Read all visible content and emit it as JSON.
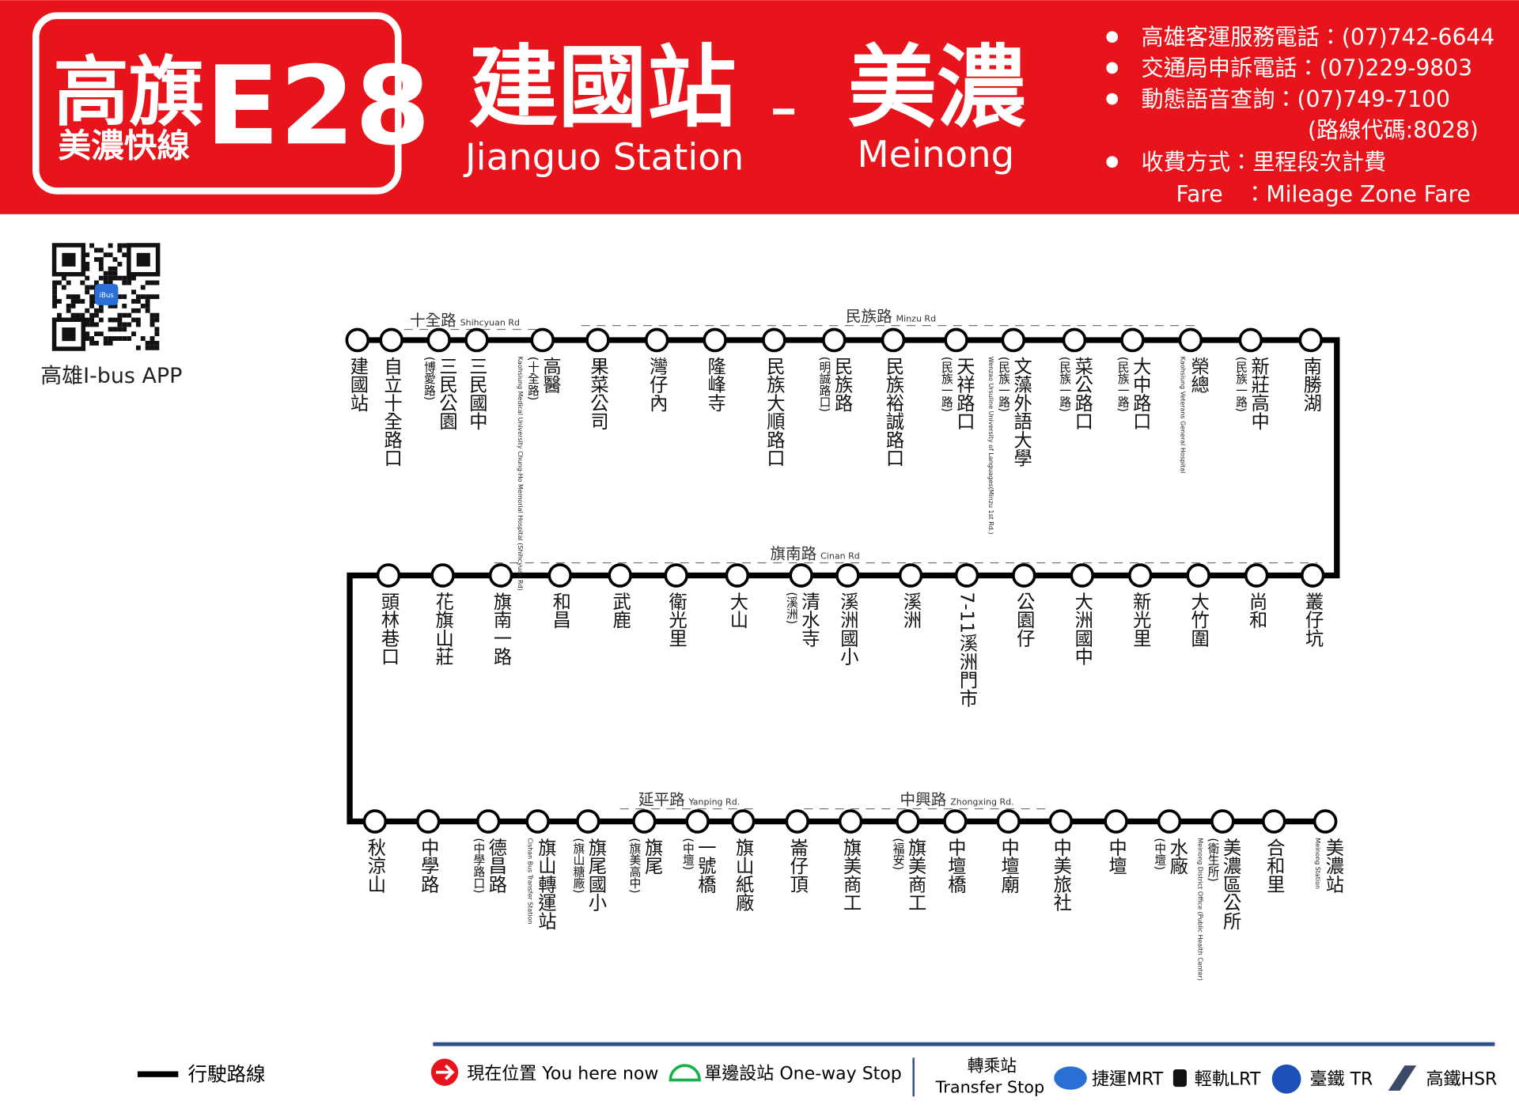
{
  "header": {
    "route_name": "高旗",
    "route_number": "E28",
    "route_subtitle": "美濃快線",
    "origin": "建國站",
    "origin_en": "Jianguo Station",
    "destination": "美濃",
    "destination_en": "Meinong"
  },
  "info": {
    "service_phone": "高雄客運服務電話：(07)742-6644",
    "complaint_phone": "交通局申訴電話：(07)229-9803",
    "voice_query": "動態語音查詢：(07)749-7100",
    "route_code": "(路線代碼:8028)",
    "fare": "收費方式：里程段次計費",
    "fare_en_label": "Fare",
    "fare_en": "：Mileage Zone Fare"
  },
  "app": {
    "label": "高雄I-bus APP",
    "badge": "iBus"
  },
  "roads": [
    {
      "name": "十全路",
      "en": "Shihcyuan Rd"
    },
    {
      "name": "民族路",
      "en": "Minzu Rd"
    },
    {
      "name": "旗南路",
      "en": "Cinan Rd"
    },
    {
      "name": "延平路",
      "en": "Yanping Rd."
    },
    {
      "name": "中興路",
      "en": "Zhongxing Rd."
    }
  ],
  "rows": [
    {
      "stops": [
        {
          "name": "建國站"
        },
        {
          "name": "自立十全路口"
        },
        {
          "name": "三民公園",
          "note": "(博愛路)"
        },
        {
          "name": "三民國中"
        },
        {
          "name": "高醫",
          "note": "(十全路)",
          "en": "Kaohsiung Medical University Chung-Ho Memorial Hospital (Shihcyuan Rd)"
        },
        {
          "name": "果菜公司"
        },
        {
          "name": "灣仔內"
        },
        {
          "name": "隆峰寺"
        },
        {
          "name": "民族大順路口"
        },
        {
          "name": "民族路",
          "note": "(明誠路口)"
        },
        {
          "name": "民族裕誠路口"
        },
        {
          "name": "天祥路口",
          "note": "(民族一路)"
        },
        {
          "name": "文藻外語大學",
          "note": "(民族一路)",
          "en": "Wenzao Ursuline University of Languages(Minzu 1st Rd.)"
        },
        {
          "name": "菜公路口",
          "note": "(民族一路)"
        },
        {
          "name": "大中路口",
          "note": "(民族一路)"
        },
        {
          "name": "榮總",
          "en": "Kaohsiung Veterans General Hospital"
        },
        {
          "name": "新莊高中",
          "note": "(民族一路)"
        },
        {
          "name": "南勝湖"
        }
      ]
    },
    {
      "stops": [
        {
          "name": "頭林巷口"
        },
        {
          "name": "花旗山莊"
        },
        {
          "name": "旗南一路"
        },
        {
          "name": "和昌"
        },
        {
          "name": "武鹿"
        },
        {
          "name": "衛光里"
        },
        {
          "name": "大山"
        },
        {
          "name": "清水寺",
          "note": "(溪洲)"
        },
        {
          "name": "溪洲國小"
        },
        {
          "name": "溪洲"
        },
        {
          "name": "7-11溪洲門市"
        },
        {
          "name": "公園仔"
        },
        {
          "name": "大洲國中"
        },
        {
          "name": "新光里"
        },
        {
          "name": "大竹圍"
        },
        {
          "name": "尚和"
        },
        {
          "name": "叢仔坑"
        }
      ]
    },
    {
      "stops": [
        {
          "name": "秋涼山"
        },
        {
          "name": "中學路"
        },
        {
          "name": "德昌路",
          "note": "(中學路口)"
        },
        {
          "name": "旗山轉運站",
          "en": "Cishan Bus Transfer Station"
        },
        {
          "name": "旗尾國小",
          "note": "(旗山糖廠)"
        },
        {
          "name": "旗尾",
          "note": "(旗美高中)"
        },
        {
          "name": "一號橋",
          "note": "(中壇)"
        },
        {
          "name": "旗山紙廠"
        },
        {
          "name": "崙仔頂"
        },
        {
          "name": "旗美商工"
        },
        {
          "name": "旗美商工",
          "note": "(福安)"
        },
        {
          "name": "中壇橋"
        },
        {
          "name": "中壇廟"
        },
        {
          "name": "中美旅社"
        },
        {
          "name": "中壇"
        },
        {
          "name": "水廠",
          "note": "(中壇)"
        },
        {
          "name": "美濃區公所",
          "note": "(衛生所)",
          "en": "Meinong District Office (Public Health Center)"
        },
        {
          "name": "合和里"
        },
        {
          "name": "美濃站",
          "en": "Meinong Station"
        }
      ]
    }
  ],
  "legend": {
    "route": "行駛路線",
    "you_here": "現在位置 You here now",
    "one_way": "單邊設站 One-way Stop",
    "transfer": "轉乘站",
    "transfer_en": "Transfer Stop",
    "mrt": "捷運MRT",
    "lrt": "輕軌LRT",
    "tr": "臺鐵 TR",
    "hsr": "高鐵HSR"
  }
}
